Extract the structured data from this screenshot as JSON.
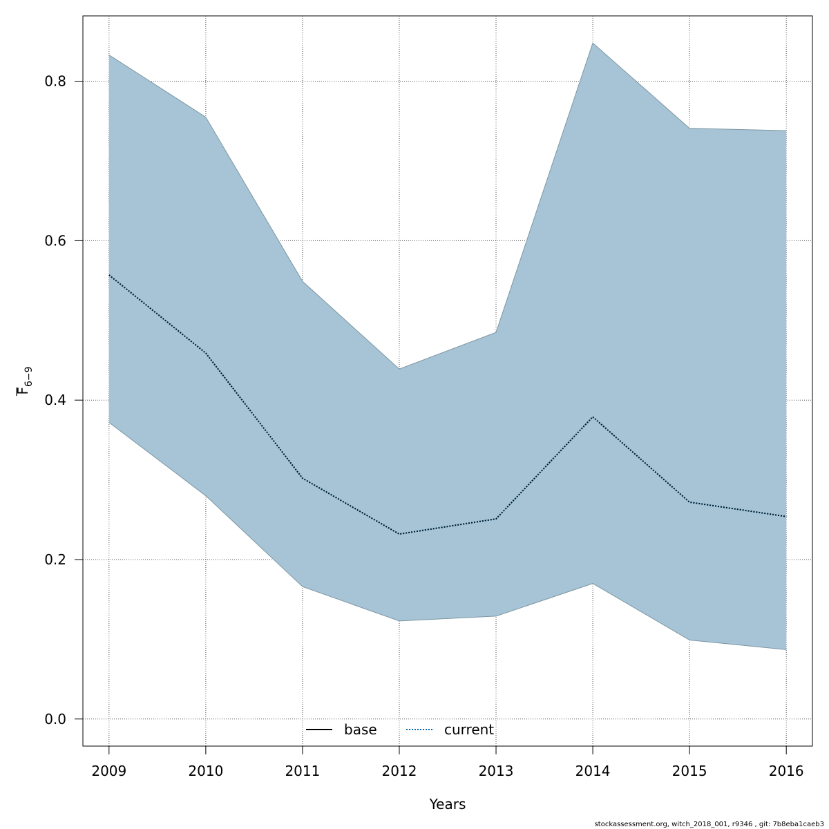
{
  "chart_data": {
    "type": "line",
    "xlabel": "Years",
    "ylabel": "F",
    "ylabel_subscript": "6−9",
    "x": [
      2009,
      2010,
      2011,
      2012,
      2013,
      2014,
      2015,
      2016
    ],
    "xlim": [
      2008.73,
      2016.27
    ],
    "ylim": [
      -0.034,
      0.882
    ],
    "y_ticks": [
      "0.0",
      "0.2",
      "0.4",
      "0.6",
      "0.8"
    ],
    "grid": true,
    "series": [
      {
        "name": "base",
        "style": "solid",
        "color": "#000000",
        "values": [
          0.557,
          0.459,
          0.302,
          0.232,
          0.251,
          0.379,
          0.272,
          0.254
        ]
      },
      {
        "name": "current",
        "style": "dotted",
        "color": "#0066aa",
        "values": [
          0.557,
          0.459,
          0.302,
          0.232,
          0.251,
          0.379,
          0.272,
          0.254
        ]
      }
    ],
    "confidence_band": {
      "color": "#a6c4d5",
      "upper": [
        0.833,
        0.755,
        0.549,
        0.439,
        0.485,
        0.848,
        0.741,
        0.738
      ],
      "lower": [
        0.372,
        0.28,
        0.166,
        0.123,
        0.129,
        0.17,
        0.099,
        0.087
      ]
    },
    "legend": {
      "placement": "bottom-center",
      "entries": [
        "base",
        "current"
      ]
    }
  },
  "footer": "stockassessment.org, witch_2018_001, r9346 , git: 7b8eba1caeb3"
}
